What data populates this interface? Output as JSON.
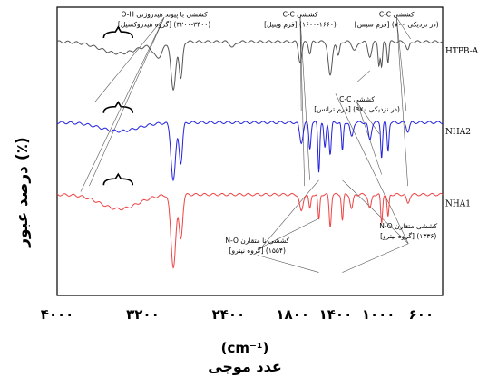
{
  "chart_data": {
    "type": "line",
    "xlabel_unit": "(cm⁻¹)",
    "xlabel": "عدد موجی",
    "ylabel": "درصد عبور (٪)",
    "xlim": [
      4000,
      400
    ],
    "x_ticks": [
      {
        "value": 4000,
        "label": "۴۰۰۰"
      },
      {
        "value": 3200,
        "label": "۳۲۰۰"
      },
      {
        "value": 2400,
        "label": "۲۴۰۰"
      },
      {
        "value": 1800,
        "label": "۱۸۰۰"
      },
      {
        "value": 1400,
        "label": "۱۴۰۰"
      },
      {
        "value": 1000,
        "label": "۱۰۰۰"
      },
      {
        "value": 600,
        "label": "۶۰۰"
      }
    ],
    "grid": false,
    "legend": "inline-right",
    "series": [
      {
        "name": "HTPB-A",
        "color": "#555555",
        "baseline": 0.12,
        "features": [
          {
            "x": 3420,
            "depth": 0.04,
            "width": 250
          },
          {
            "x": 3060,
            "depth": 0.05,
            "width": 60
          },
          {
            "x": 2915,
            "depth": 0.17,
            "width": 30
          },
          {
            "x": 2845,
            "depth": 0.13,
            "width": 22
          },
          {
            "x": 2360,
            "depth": 0.02,
            "width": 30
          },
          {
            "x": 1730,
            "depth": 0.07,
            "width": 22
          },
          {
            "x": 1640,
            "depth": 0.04,
            "width": 16
          },
          {
            "x": 1450,
            "depth": 0.12,
            "width": 25
          },
          {
            "x": 1375,
            "depth": 0.05,
            "width": 18
          },
          {
            "x": 1220,
            "depth": 0.03,
            "width": 30
          },
          {
            "x": 1080,
            "depth": 0.05,
            "width": 25
          },
          {
            "x": 995,
            "depth": 0.08,
            "width": 12
          },
          {
            "x": 970,
            "depth": 0.09,
            "width": 12
          },
          {
            "x": 910,
            "depth": 0.07,
            "width": 12
          },
          {
            "x": 725,
            "depth": 0.03,
            "width": 20
          }
        ]
      },
      {
        "name": "NHA2",
        "color": "#2222dd",
        "baseline": 0.4,
        "features": [
          {
            "x": 3420,
            "depth": 0.03,
            "width": 250
          },
          {
            "x": 2915,
            "depth": 0.2,
            "width": 30
          },
          {
            "x": 2845,
            "depth": 0.14,
            "width": 22
          },
          {
            "x": 1720,
            "depth": 0.07,
            "width": 22
          },
          {
            "x": 1640,
            "depth": 0.09,
            "width": 14
          },
          {
            "x": 1556,
            "depth": 0.17,
            "width": 12
          },
          {
            "x": 1500,
            "depth": 0.09,
            "width": 14
          },
          {
            "x": 1450,
            "depth": 0.11,
            "width": 14
          },
          {
            "x": 1336,
            "depth": 0.1,
            "width": 12
          },
          {
            "x": 1250,
            "depth": 0.05,
            "width": 20
          },
          {
            "x": 1080,
            "depth": 0.06,
            "width": 20
          },
          {
            "x": 970,
            "depth": 0.12,
            "width": 12
          },
          {
            "x": 910,
            "depth": 0.1,
            "width": 12
          },
          {
            "x": 725,
            "depth": 0.03,
            "width": 20
          }
        ]
      },
      {
        "name": "NHA1",
        "color": "#ee4444",
        "baseline": 0.65,
        "features": [
          {
            "x": 3420,
            "depth": 0.05,
            "width": 250
          },
          {
            "x": 2915,
            "depth": 0.25,
            "width": 32
          },
          {
            "x": 2845,
            "depth": 0.15,
            "width": 24
          },
          {
            "x": 1720,
            "depth": 0.06,
            "width": 22
          },
          {
            "x": 1640,
            "depth": 0.05,
            "width": 14
          },
          {
            "x": 1556,
            "depth": 0.09,
            "width": 12
          },
          {
            "x": 1450,
            "depth": 0.11,
            "width": 14
          },
          {
            "x": 1336,
            "depth": 0.09,
            "width": 12
          },
          {
            "x": 1250,
            "depth": 0.05,
            "width": 18
          },
          {
            "x": 1080,
            "depth": 0.05,
            "width": 20
          },
          {
            "x": 970,
            "depth": 0.1,
            "width": 12
          },
          {
            "x": 910,
            "depth": 0.08,
            "width": 12
          },
          {
            "x": 725,
            "depth": 0.03,
            "width": 20
          }
        ]
      }
    ],
    "annotations": [
      {
        "id": "oh",
        "lines": [
          "O-H کششی با پیوند هیدروژنی",
          "[گروه هیدروکسیل] (۳۴۰۰-۳۲۰۰)"
        ],
        "x": 3000,
        "y": -0.005
      },
      {
        "id": "cc-vinyl",
        "lines": [
          "C-C کششی",
          "[فرم وینیل] (۱۶۶۰-۱۶۰۰)"
        ],
        "x": 1730,
        "y": -0.005
      },
      {
        "id": "cc-cis",
        "lines": [
          "C-C کششی",
          "[فرم سیس] (در نزدیکی ۷۰۰)"
        ],
        "x": 830,
        "y": -0.005
      },
      {
        "id": "cc-trans",
        "lines": [
          "C-C کششی",
          "[فرم ترانس] (در نزدیکی ۹۷۰)"
        ],
        "x": 1200,
        "y": 0.29
      },
      {
        "id": "no-asym",
        "lines": [
          "N-O کششی نا متقارن",
          "[گروه نیترو] (۱۵۵۴)"
        ],
        "x": 2130,
        "y": 0.78
      },
      {
        "id": "no-sym",
        "lines": [
          "N-O کششی متقارن",
          "[گروه نیترو] (۱۳۳۶)"
        ],
        "x": 720,
        "y": 0.73
      }
    ]
  }
}
